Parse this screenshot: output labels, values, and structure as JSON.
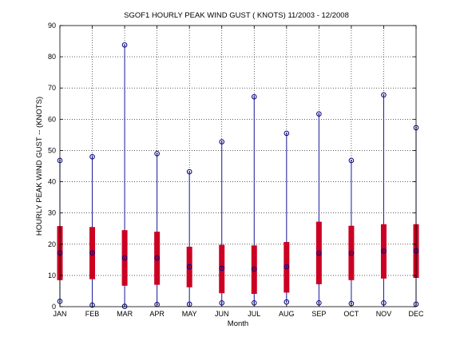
{
  "chart_data": {
    "type": "box",
    "title": "SGOF1  HOURLY PEAK WIND GUST ( KNOTS) 11/2003 - 12/2008",
    "xlabel": "Month",
    "ylabel": "HOURLY PEAK WIND GUST -- (KNOTS)",
    "ylim": [
      0,
      90
    ],
    "yticks": [
      0,
      10,
      20,
      30,
      40,
      50,
      60,
      70,
      80,
      90
    ],
    "grid": true,
    "categories": [
      "JAN",
      "FEB",
      "MAR",
      "APR",
      "MAY",
      "JUN",
      "JUL",
      "AUG",
      "SEP",
      "OCT",
      "NOV",
      "DEC"
    ],
    "series": [
      {
        "min": [
          1.7,
          0.5,
          0.1,
          0.7,
          0.8,
          1.2,
          1.2,
          1.5,
          1.2,
          1.0,
          1.2,
          0.8
        ],
        "q1": [
          8.5,
          8.8,
          6.7,
          7.0,
          6.2,
          4.3,
          4.1,
          4.5,
          7.2,
          8.5,
          9.0,
          9.2
        ],
        "median": [
          17.2,
          17.2,
          15.6,
          15.6,
          12.8,
          12.3,
          12.0,
          12.8,
          17.1,
          17.1,
          17.8,
          17.9
        ],
        "q3": [
          25.8,
          25.5,
          24.5,
          24.0,
          19.2,
          19.8,
          19.6,
          20.7,
          27.2,
          25.9,
          26.4,
          26.4
        ],
        "max": [
          46.8,
          48.0,
          83.8,
          49.0,
          43.2,
          52.8,
          67.2,
          55.5,
          61.7,
          46.8,
          67.8,
          57.3
        ]
      }
    ],
    "colors": {
      "box": "#cc0022",
      "whisker": "#1a1a99",
      "marker": "#000080",
      "grid": "#000000"
    }
  }
}
